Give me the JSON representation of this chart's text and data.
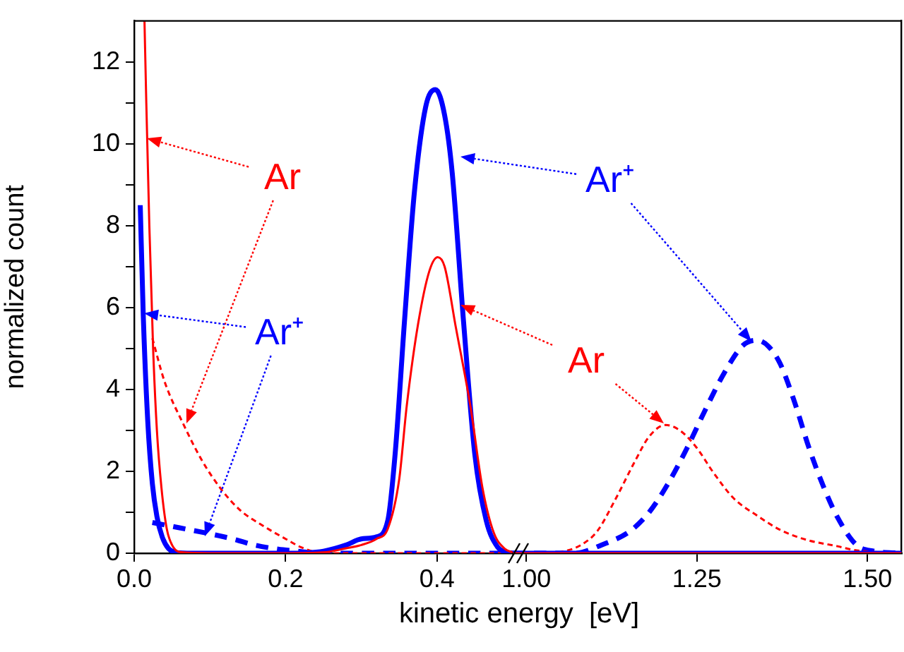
{
  "chart_data": [
    {
      "type": "line",
      "xlabel": "kinetic energy  [eV]",
      "ylabel": "normalized count",
      "xlim": [
        0,
        0.5
      ],
      "xticks": [
        {
          "value": 0,
          "label": "0.0"
        },
        0.2,
        0.4
      ],
      "ylim": [
        0,
        13
      ],
      "yticks": [
        0,
        {
          "value": 1,
          "label": null
        },
        2,
        {
          "value": 3,
          "label": null
        },
        4,
        {
          "value": 5,
          "label": null
        },
        6,
        {
          "value": 7,
          "label": null
        },
        8,
        {
          "value": 9,
          "label": null
        },
        10,
        {
          "value": 11,
          "label": null
        },
        12
      ],
      "grid": false,
      "legend": false,
      "marker": "none",
      "annotations": [
        "Ar",
        "Ar⁺",
        "Ar⁺",
        "Ar"
      ],
      "series": [
        {
          "color": "#ff0000",
          "line_style": "solid",
          "x": [
            0.0136,
            0.016,
            0.02,
            0.025,
            0.03,
            0.036,
            0.043,
            0.05,
            0.06,
            0.1,
            0.2,
            0.25,
            0.28,
            0.3,
            0.32,
            0.335,
            0.35,
            0.36,
            0.375,
            0.39,
            0.401,
            0.41,
            0.425,
            0.444,
            0.46,
            0.475,
            0.49,
            0.5
          ],
          "values": [
            13,
            11,
            8,
            5,
            3,
            1.6,
            0.6,
            0.2,
            0.03,
            0,
            0,
            0.02,
            0.12,
            0.2,
            0.35,
            0.6,
            1.8,
            3.6,
            5.6,
            6.9,
            7.23,
            7,
            5.5,
            3.6,
            1.6,
            0.5,
            0.1,
            0.02
          ]
        },
        {
          "color": "#0000ff",
          "line_style": "solid",
          "x": [
            0.008,
            0.012,
            0.018,
            0.024,
            0.03,
            0.037,
            0.045,
            0.055,
            0.07,
            0.2,
            0.25,
            0.28,
            0.3,
            0.32,
            0.335,
            0.345,
            0.357,
            0.37,
            0.385,
            0.398,
            0.41,
            0.42,
            0.435,
            0.45,
            0.465,
            0.48,
            0.49,
            0.5
          ],
          "values": [
            8.5,
            5.8,
            3.2,
            1.7,
            0.9,
            0.4,
            0.12,
            0.02,
            0,
            0,
            0.05,
            0.2,
            0.35,
            0.4,
            0.8,
            2.5,
            5.66,
            8.8,
            10.9,
            11.32,
            10.7,
            9.3,
            5.66,
            2.4,
            0.8,
            0.15,
            0.03,
            0
          ]
        },
        {
          "color": "#ff0000",
          "line_style": "dashed",
          "x": [
            0.024,
            0.04,
            0.065,
            0.09,
            0.115,
            0.14,
            0.171,
            0.2,
            0.22,
            0.25,
            0.5
          ],
          "values": [
            5.25,
            4.2,
            3.15,
            2.25,
            1.56,
            1.05,
            0.66,
            0.35,
            0.15,
            0,
            0
          ]
        },
        {
          "color": "#0000ff",
          "line_style": "dashed",
          "x": [
            0.024,
            0.06,
            0.096,
            0.13,
            0.159,
            0.19,
            0.21,
            0.25,
            0.5
          ],
          "values": [
            0.75,
            0.62,
            0.49,
            0.35,
            0.2,
            0.1,
            0.06,
            0,
            0
          ]
        }
      ]
    },
    {
      "type": "line",
      "xlim": [
        0.98,
        1.55
      ],
      "xticks": [
        {
          "value": 1,
          "label": "1.00"
        },
        1.25,
        {
          "value": 1.5,
          "label": "1.50"
        }
      ],
      "ylim": [
        0,
        13
      ],
      "tick_labels": "x",
      "grid": false,
      "legend": false,
      "marker": "none",
      "series": [
        {
          "color": "#ff0000",
          "line_style": "solid",
          "x": [
            0.98,
            1.55
          ],
          "values": [
            0,
            0
          ]
        },
        {
          "color": "#0000ff",
          "line_style": "solid",
          "x": [
            0.98,
            1.55
          ],
          "values": [
            0,
            0
          ]
        },
        {
          "color": "#ff0000",
          "line_style": "dashed",
          "x": [
            0.98,
            1.03,
            1.056,
            1.08,
            1.104,
            1.13,
            1.159,
            1.18,
            1.204,
            1.225,
            1.249,
            1.275,
            1.304,
            1.34,
            1.372,
            1.41,
            1.456,
            1.48,
            1.52,
            1.55
          ],
          "values": [
            0,
            0,
            0.05,
            0.2,
            0.54,
            1.3,
            2.24,
            2.85,
            3.13,
            3,
            2.59,
            1.95,
            1.34,
            0.9,
            0.57,
            0.33,
            0.17,
            0.08,
            0.02,
            0
          ]
        },
        {
          "color": "#0000ff",
          "line_style": "dashed",
          "x": [
            0.98,
            1.071,
            1.11,
            1.152,
            1.18,
            1.207,
            1.235,
            1.262,
            1.29,
            1.318,
            1.338,
            1.355,
            1.372,
            1.393,
            1.414,
            1.435,
            1.456,
            1.484,
            1.51,
            1.55
          ],
          "values": [
            0,
            0,
            0.2,
            0.54,
            1,
            1.68,
            2.55,
            3.49,
            4.4,
            5.08,
            5.2,
            5.05,
            4.63,
            3.7,
            2.59,
            1.65,
            0.88,
            0.2,
            0.05,
            0
          ]
        }
      ]
    }
  ]
}
